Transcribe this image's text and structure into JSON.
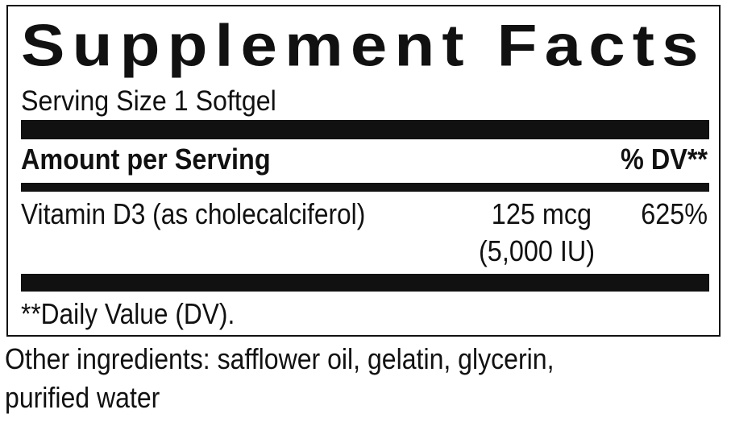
{
  "label": {
    "title": "Supplement Facts",
    "serving_size": "Serving Size 1 Softgel",
    "header_left": "Amount per Serving",
    "header_right": "% DV**",
    "rows": [
      {
        "name": "Vitamin D3 (as cholecalciferol)",
        "amount": "125 mcg",
        "amount_alt": "(5,000 IU)",
        "dv": "625%"
      }
    ],
    "footnote": "**Daily Value (DV)."
  },
  "other_ingredients": {
    "line1": "Other ingredients: safflower oil, gelatin, glycerin,",
    "line2": "purified water"
  }
}
